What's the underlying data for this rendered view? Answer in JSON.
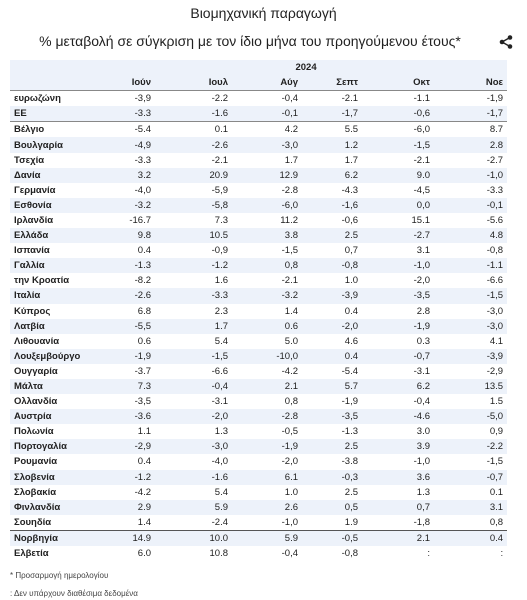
{
  "header": {
    "title": "Βιομηχανική παραγωγή",
    "subtitle": "% μεταβολή σε σύγκριση με τον ίδιο μήνα του προηγούμενου έτους*"
  },
  "table": {
    "year": "2024",
    "columns": [
      "Ιούν",
      "Ιουλ",
      "Αύγ",
      "Σεπτ",
      "Οκτ",
      "Νοε"
    ],
    "rows": [
      [
        "ευρωζώνη",
        "-3,9",
        "-2.2",
        "-0,4",
        "-2.1",
        "-1.1",
        "-1,9"
      ],
      [
        "ΕΕ",
        "-3.3",
        "-1.6",
        "-0,1",
        "-1,7",
        "-0,6",
        "-1,7"
      ],
      [
        "Βέλγιο",
        "-5.4",
        "0.1",
        "4.2",
        "5.5",
        "-6,0",
        "8.7"
      ],
      [
        "Βουλγαρία",
        "-4,9",
        "-2.6",
        "-3,0",
        "1.2",
        "-1,5",
        "2.8"
      ],
      [
        "Τσεχία",
        "-3.3",
        "-2.1",
        "1.7",
        "1.7",
        "-2.1",
        "-2.7"
      ],
      [
        "Δανία",
        "3.2",
        "20.9",
        "12.9",
        "6.2",
        "9.0",
        "-1,0"
      ],
      [
        "Γερμανία",
        "-4,0",
        "-5,9",
        "-2.8",
        "-4.3",
        "-4,5",
        "-3.3"
      ],
      [
        "Εσθονία",
        "-3.2",
        "-5,8",
        "-6,0",
        "-1,6",
        "0,0",
        "-0,1"
      ],
      [
        "Ιρλανδία",
        "-16.7",
        "7.3",
        "11.2",
        "-0,6",
        "15.1",
        "-5.6"
      ],
      [
        "Ελλάδα",
        "9.8",
        "10.5",
        "3.8",
        "2.5",
        "-2.7",
        "4.8"
      ],
      [
        "Ισπανία",
        "0.4",
        "-0,9",
        "-1,5",
        "0,7",
        "3.1",
        "-0,8"
      ],
      [
        "Γαλλία",
        "-1.3",
        "-1.2",
        "0,8",
        "-0,8",
        "-1,0",
        "-1.1"
      ],
      [
        "την Κροατία",
        "-8.2",
        "1.6",
        "-2.1",
        "1.0",
        "-2,0",
        "-6.6"
      ],
      [
        "Ιταλία",
        "-2.6",
        "-3.3",
        "-3.2",
        "-3,9",
        "-3,5",
        "-1,5"
      ],
      [
        "Κύπρος",
        "6.8",
        "2.3",
        "1.4",
        "0.4",
        "2.8",
        "-3,0"
      ],
      [
        "Λατβία",
        "-5,5",
        "1.7",
        "0.6",
        "-2,0",
        "-1,9",
        "-3,0"
      ],
      [
        "Λιθουανία",
        "0.6",
        "5.4",
        "5.0",
        "4.6",
        "0.3",
        "4.1"
      ],
      [
        "Λουξεμβούργο",
        "-1,9",
        "-1,5",
        "-10,0",
        "0.4",
        "-0,7",
        "-3,9"
      ],
      [
        "Ουγγαρία",
        "-3.7",
        "-6.6",
        "-4.2",
        "-5.4",
        "-3.1",
        "-2,9"
      ],
      [
        "Μάλτα",
        "7.3",
        "-0,4",
        "2.1",
        "5.7",
        "6.2",
        "13.5"
      ],
      [
        "Ολλανδία",
        "-3,5",
        "-3.1",
        "0,8",
        "-1,9",
        "-0,4",
        "1.5"
      ],
      [
        "Αυστρία",
        "-3.6",
        "-2,0",
        "-2.8",
        "-3,5",
        "-4.6",
        "-5,0"
      ],
      [
        "Πολωνία",
        "1.1",
        "1.3",
        "-0,5",
        "-1.3",
        "3.0",
        "0,9"
      ],
      [
        "Πορτογαλία",
        "-2,9",
        "-3,0",
        "-1,9",
        "2.5",
        "3.9",
        "-2.2"
      ],
      [
        "Ρουμανία",
        "0.4",
        "-4,0",
        "-2,0",
        "-3.8",
        "-1,0",
        "-1,5"
      ],
      [
        "Σλοβενία",
        "-1.2",
        "-1.6",
        "6.1",
        "-0,3",
        "3.6",
        "-0,7"
      ],
      [
        "Σλοβακία",
        "-4.2",
        "5.4",
        "1.0",
        "2.5",
        "1.3",
        "0.1"
      ],
      [
        "Φινλανδία",
        "2.9",
        "5.9",
        "2.6",
        "0,5",
        "0,7",
        "3.1"
      ],
      [
        "Σουηδία",
        "1.4",
        "-2.4",
        "-1,0",
        "1.9",
        "-1,8",
        "0,8"
      ],
      [
        "Νορβηγία",
        "14.9",
        "10.0",
        "5.9",
        "-0,5",
        "2.1",
        "0.4"
      ],
      [
        "Ελβετία",
        "6.0",
        "10.8",
        "-0,4",
        "-0,8",
        ":",
        ":"
      ]
    ]
  },
  "footnotes": [
    "* Προσαρμογή ημερολογίου",
    ": Δεν υπάρχουν διαθέσιμα δεδομένα"
  ]
}
